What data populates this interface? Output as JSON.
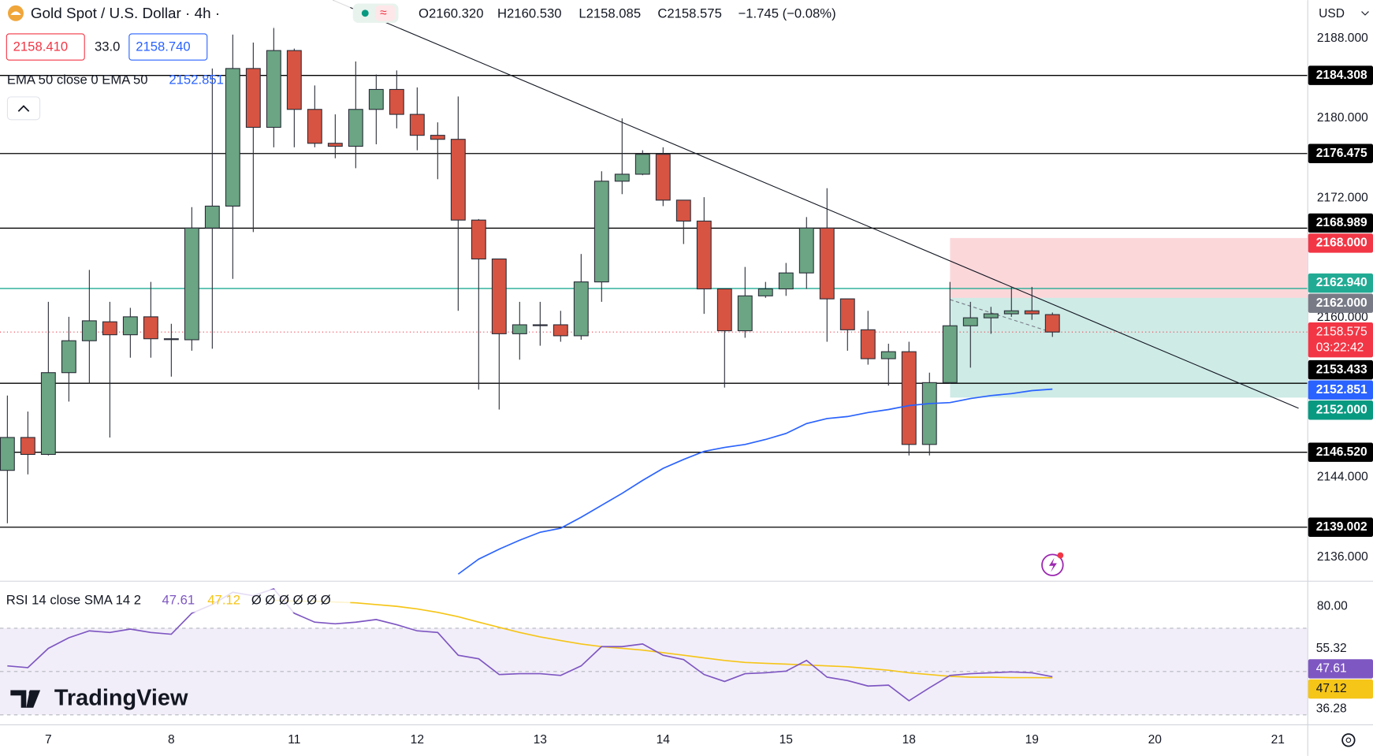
{
  "header": {
    "symbol": "Gold Spot / U.S. Dollar · 4h ·",
    "ohlc": [
      "O2160.320",
      "H2160.530",
      "L2158.085",
      "C2158.575"
    ],
    "change": "−1.745 (−0.08%)",
    "bid": "2158.410",
    "spread": "33.0",
    "ask": "2158.740",
    "currency": "USD",
    "brand": "TradingView"
  },
  "indicators": {
    "ema_title": "EMA 50 close 0 EMA 50",
    "rsi_title": "RSI 14 close SMA 14 2",
    "rsi_extra": "Ø Ø Ø Ø Ø Ø"
  },
  "chart_data": [
    {
      "type": "candlestick",
      "up_color": "#6ba583",
      "down_color": "#d75442",
      "xlim": [
        -0.36,
        63.44
      ],
      "x_labels": [
        {
          "value": 2,
          "label": "7"
        },
        {
          "value": 8,
          "label": "8"
        },
        {
          "value": 14,
          "label": "11"
        },
        {
          "value": 20,
          "label": "12"
        },
        {
          "value": 26,
          "label": "13"
        },
        {
          "value": 32,
          "label": "14"
        },
        {
          "value": 38,
          "label": "15"
        },
        {
          "value": 44,
          "label": "18"
        },
        {
          "value": 50,
          "label": "19"
        },
        {
          "value": 56,
          "label": "20"
        },
        {
          "value": 62,
          "label": "21"
        }
      ],
      "ylim": [
        2133.72,
        2191.86
      ],
      "yticks": [
        {
          "value": 2188,
          "label": "2188.000"
        },
        {
          "value": 2180,
          "label": "2180.000"
        },
        {
          "value": 2172,
          "label": "2172.000"
        },
        {
          "value": 2160,
          "label": "2160.000"
        },
        {
          "value": 2144,
          "label": "2144.000"
        },
        {
          "value": 2136,
          "label": "2136.000"
        }
      ],
      "open": [
        2144.7,
        2148.0,
        2146.3,
        2154.5,
        2157.7,
        2159.6,
        2158.3,
        2160.1,
        2157.9,
        2157.8,
        2169.0,
        2171.2,
        2185.0,
        2179.1,
        2186.8,
        2180.9,
        2177.5,
        2177.2,
        2180.9,
        2182.9,
        2180.4,
        2178.3,
        2177.9,
        2169.8,
        2165.9,
        2158.4,
        2159.3,
        2159.3,
        2158.2,
        2163.6,
        2173.7,
        2174.4,
        2176.4,
        2171.8,
        2169.7,
        2162.9,
        2158.7,
        2162.2,
        2162.9,
        2164.5,
        2169.0,
        2161.9,
        2158.8,
        2155.9,
        2156.6,
        2147.3,
        2153.5,
        2159.2,
        2160.0,
        2160.4,
        2160.7,
        2160.32
      ],
      "high": [
        2152.2,
        2150.6,
        2161.6,
        2160.1,
        2164.8,
        2161.6,
        2161.0,
        2163.6,
        2159.4,
        2171.1,
        2185.0,
        2188.4,
        2187.6,
        2189.2,
        2187.0,
        2183.3,
        2180.4,
        2185.7,
        2184.4,
        2184.8,
        2183.1,
        2179.6,
        2182.2,
        2169.9,
        2165.9,
        2161.6,
        2161.6,
        2160.7,
        2166.4,
        2174.7,
        2180.0,
        2176.8,
        2177.1,
        2171.8,
        2172.1,
        2162.9,
        2165.1,
        2163.6,
        2165.5,
        2170.1,
        2173.0,
        2161.9,
        2160.7,
        2157.4,
        2157.6,
        2154.5,
        2163.6,
        2161.6,
        2161.1,
        2163.1,
        2163.1,
        2160.53
      ],
      "low": [
        2139.4,
        2144.3,
        2146.2,
        2151.6,
        2153.4,
        2148.0,
        2156.0,
        2156.0,
        2154.1,
        2156.7,
        2156.9,
        2163.9,
        2168.6,
        2177.1,
        2177.1,
        2177.1,
        2176.0,
        2175.0,
        2177.4,
        2179.0,
        2176.8,
        2173.9,
        2160.7,
        2152.8,
        2150.8,
        2155.8,
        2157.2,
        2157.6,
        2157.8,
        2161.6,
        2172.4,
        2174.3,
        2171.2,
        2167.4,
        2160.4,
        2153.0,
        2158.0,
        2162.0,
        2162.2,
        2162.9,
        2157.6,
        2156.7,
        2155.3,
        2153.2,
        2146.2,
        2146.2,
        2153.4,
        2155.0,
        2158.4,
        2160.1,
        2159.8,
        2158.085
      ],
      "close": [
        2148.0,
        2146.3,
        2154.5,
        2157.7,
        2159.7,
        2158.3,
        2160.1,
        2157.9,
        2157.9,
        2169.0,
        2171.2,
        2185.0,
        2179.1,
        2186.8,
        2180.9,
        2177.5,
        2177.2,
        2180.9,
        2182.9,
        2180.4,
        2178.3,
        2177.9,
        2169.8,
        2165.9,
        2158.4,
        2159.3,
        2159.3,
        2158.2,
        2163.6,
        2173.7,
        2174.4,
        2176.4,
        2171.8,
        2169.7,
        2162.9,
        2158.7,
        2162.2,
        2162.9,
        2164.5,
        2169.0,
        2161.9,
        2158.8,
        2155.9,
        2156.6,
        2147.3,
        2153.5,
        2159.2,
        2160.0,
        2160.4,
        2160.7,
        2160.4,
        2158.575
      ],
      "last_color": "#f23645",
      "countdown": "03:22:42",
      "ema": {
        "name": "EMA 50",
        "color": "#2962ff",
        "values": [
          null,
          null,
          null,
          null,
          null,
          null,
          null,
          null,
          null,
          null,
          null,
          null,
          null,
          null,
          null,
          null,
          null,
          null,
          null,
          null,
          null,
          null,
          2134.3,
          2135.8,
          2136.8,
          2137.7,
          2138.5,
          2138.9,
          2140.0,
          2141.2,
          2142.4,
          2143.7,
          2144.9,
          2145.8,
          2146.6,
          2147.0,
          2147.3,
          2147.8,
          2148.4,
          2149.4,
          2149.9,
          2150.1,
          2150.5,
          2150.8,
          2151.2,
          2151.4,
          2151.5,
          2151.9,
          2152.2,
          2152.4,
          2152.7,
          2152.851
        ]
      },
      "price_lines": [
        {
          "value": 2184.308,
          "color": "#000000"
        },
        {
          "value": 2176.475,
          "color": "#000000"
        },
        {
          "value": 2168.989,
          "color": "#000000"
        },
        {
          "value": 2162.94,
          "label": "2162.940",
          "color": "#22ab94"
        },
        {
          "value": 2153.433,
          "color": "#000000"
        },
        {
          "value": 2146.52,
          "label": "2146.520",
          "color": "#000000"
        },
        {
          "value": 2139.002,
          "color": "#000000"
        }
      ],
      "position": {
        "stop": {
          "value": 2168,
          "label": "2168.000",
          "color": "#f23645"
        },
        "entry": {
          "value": 2162,
          "label": "2162.000",
          "color": "#787b86"
        },
        "target": {
          "value": 2152,
          "label": "2152.000",
          "color": "#089981"
        }
      }
    },
    {
      "type": "line",
      "xlim": [
        -0.36,
        63.44
      ],
      "ylim": [
        25.6,
        91.1
      ],
      "yticks": [
        {
          "value": 80,
          "label": "80.00"
        }
      ],
      "bands": [
        70,
        50,
        30
      ],
      "series": [
        {
          "name": "RSI",
          "color": "#7e57c2",
          "values": [
            52.6,
            51.8,
            60.7,
            65.6,
            68.8,
            68.0,
            69.6,
            68.0,
            67.2,
            76.9,
            80.9,
            86.6,
            85.0,
            88.2,
            76.9,
            72.8,
            72.0,
            72.8,
            74.0,
            71.6,
            68.8,
            68.0,
            57.5,
            55.9,
            48.6,
            49.0,
            49.0,
            48.2,
            52.6,
            61.5,
            61.5,
            62.7,
            57.5,
            55.5,
            48.6,
            45.4,
            49.0,
            49.4,
            50.2,
            55.1,
            47.4,
            45.8,
            43.3,
            43.7,
            36.5,
            42.5,
            48.2,
            49.0,
            49.4,
            49.8,
            49.4,
            47.61
          ]
        },
        {
          "name": "SMA",
          "color": "#f5c518",
          "values": [
            null,
            null,
            null,
            null,
            null,
            null,
            null,
            null,
            null,
            null,
            null,
            null,
            null,
            82.9,
            82.5,
            82.5,
            82.1,
            81.7,
            80.9,
            80.1,
            78.9,
            77.3,
            75.3,
            72.8,
            70.4,
            68.0,
            66.0,
            64.3,
            62.7,
            61.5,
            60.7,
            59.9,
            58.7,
            57.5,
            56.3,
            55.1,
            54.2,
            53.8,
            53.4,
            53.0,
            52.6,
            52.2,
            51.4,
            50.6,
            49.4,
            48.6,
            47.8,
            47.4,
            47.4,
            47.2,
            47.2,
            47.12
          ]
        }
      ],
      "axis_labels": [
        {
          "value": 55.32
        },
        {
          "value": 36.28
        }
      ]
    }
  ]
}
